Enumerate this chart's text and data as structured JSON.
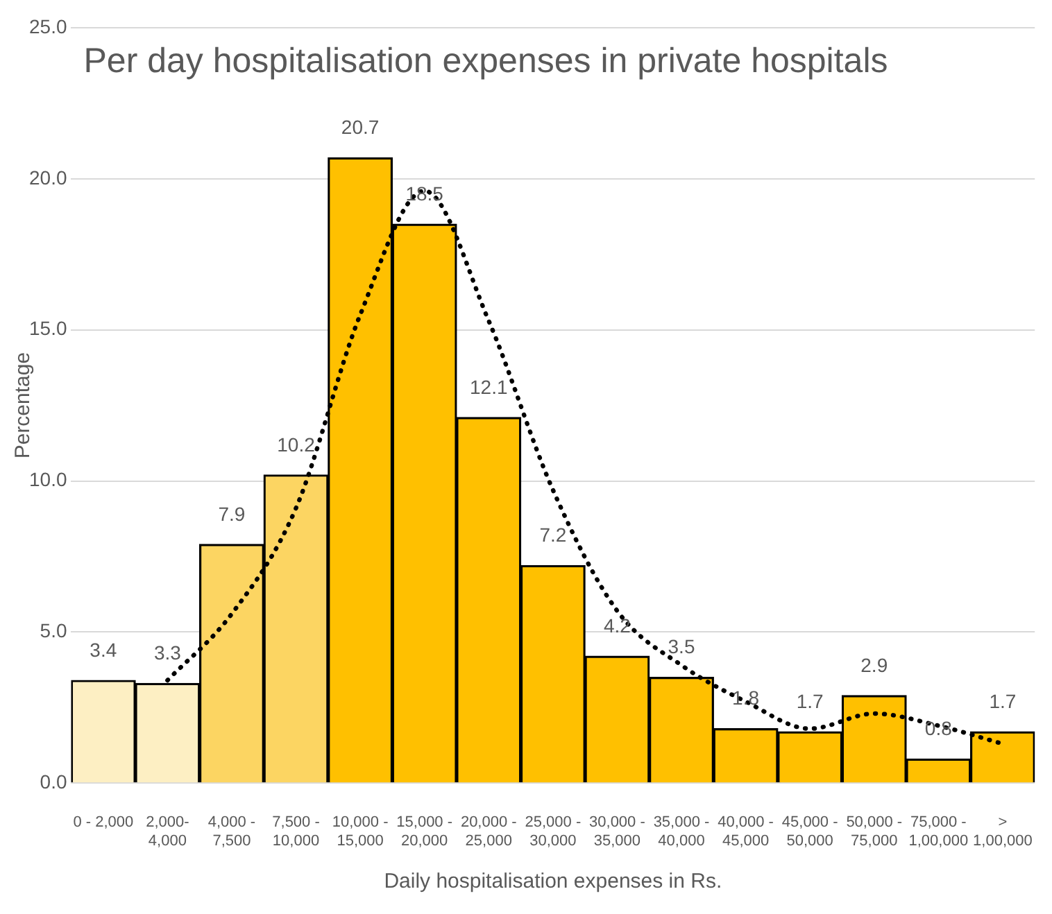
{
  "chart_data": {
    "type": "bar",
    "title": "Per day hospitalisation expenses in private hospitals",
    "xlabel": "Daily hospitalisation expenses in Rs.",
    "ylabel": "Percentage",
    "categories": [
      "0 - 2,000",
      "2,000-4,000",
      "4,000 - 7,500",
      "7,500 - 10,000",
      "10,000 - 15,000",
      "15,000 - 20,000",
      "20,000 - 25,000",
      "25,000 - 30,000",
      "30,000 - 35,000",
      "35,000 - 40,000",
      "40,000 - 45,000",
      "45,000 - 50,000",
      "50,000 - 75,000",
      "75,000 - 1,00,000",
      "> 1,00,000"
    ],
    "series": [
      {
        "values": [
          3.4,
          3.3,
          7.9,
          10.2,
          20.7,
          18.5,
          12.1,
          7.2,
          4.2,
          3.5,
          1.8,
          1.7,
          2.9,
          0.8,
          1.7
        ],
        "value_labels": [
          "3.4",
          "3.3",
          "7.9",
          "10.2",
          "20.7",
          "18.5",
          "12.1",
          "7.2",
          "4.2",
          "3.5",
          "1.8",
          "1.7",
          "2.9",
          "0.8",
          "1.7"
        ],
        "colors": [
          "#fdefc3",
          "#fdefc3",
          "#fcd562",
          "#fcd562",
          "#ffc000",
          "#ffc000",
          "#ffc000",
          "#ffc000",
          "#ffc000",
          "#ffc000",
          "#ffc000",
          "#ffc000",
          "#ffc000",
          "#ffc000",
          "#ffc000"
        ]
      },
      {
        "type": "line",
        "color": "#000000",
        "line_style": "dotted",
        "marker": "none",
        "values": [
          null,
          3.4,
          5.6,
          9.1,
          15.5,
          19.6,
          15.3,
          9.7,
          5.7,
          3.9,
          2.7,
          1.8,
          2.3,
          1.9,
          1.3
        ]
      }
    ],
    "ylim": [
      0,
      25
    ],
    "yticks": [
      {
        "value": 0,
        "label": "0.0"
      },
      {
        "value": 5,
        "label": "5.0"
      },
      {
        "value": 10,
        "label": "10.0"
      },
      {
        "value": 15,
        "label": "15.0"
      },
      {
        "value": 20,
        "label": "20.0"
      },
      {
        "value": 25,
        "label": "25.0"
      }
    ],
    "grid": "y",
    "legend": false
  }
}
